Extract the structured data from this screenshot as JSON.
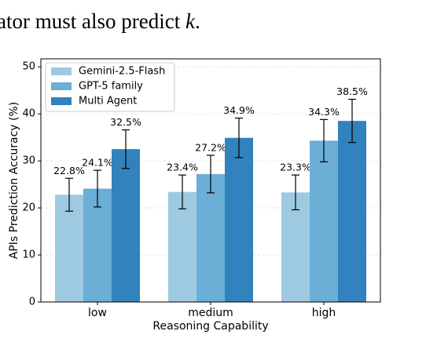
{
  "page_text": {
    "before": "ator must also predict ",
    "variable": "k",
    "after": "."
  },
  "chart_data": {
    "type": "bar",
    "x_label": "Reasoning Capability",
    "y_label": "APIs Prediction Accuracy (%)",
    "categories": [
      "low",
      "medium",
      "high"
    ],
    "series": [
      {
        "name": "Gemini-2.5-Flash",
        "color": "#9ecae1",
        "values": [
          22.8,
          23.4,
          23.3
        ],
        "errors": [
          3.5,
          3.6,
          3.7
        ],
        "value_labels": [
          "22.8%",
          "23.4%",
          "23.3%"
        ]
      },
      {
        "name": "GPT-5 family",
        "color": "#6baed6",
        "values": [
          24.1,
          27.2,
          34.3
        ],
        "errors": [
          3.9,
          4.0,
          4.5
        ],
        "value_labels": [
          "24.1%",
          "27.2%",
          "34.3%"
        ]
      },
      {
        "name": "Multi Agent",
        "color": "#3182bd",
        "values": [
          32.5,
          34.9,
          38.5
        ],
        "errors": [
          4.1,
          4.2,
          4.6
        ],
        "value_labels": [
          "32.5%",
          "34.9%",
          "38.5%"
        ]
      }
    ],
    "ylim": [
      0,
      51.7
    ],
    "yticks": [
      0,
      10,
      20,
      30,
      40,
      50
    ],
    "grid": true,
    "legend": "upper left"
  }
}
